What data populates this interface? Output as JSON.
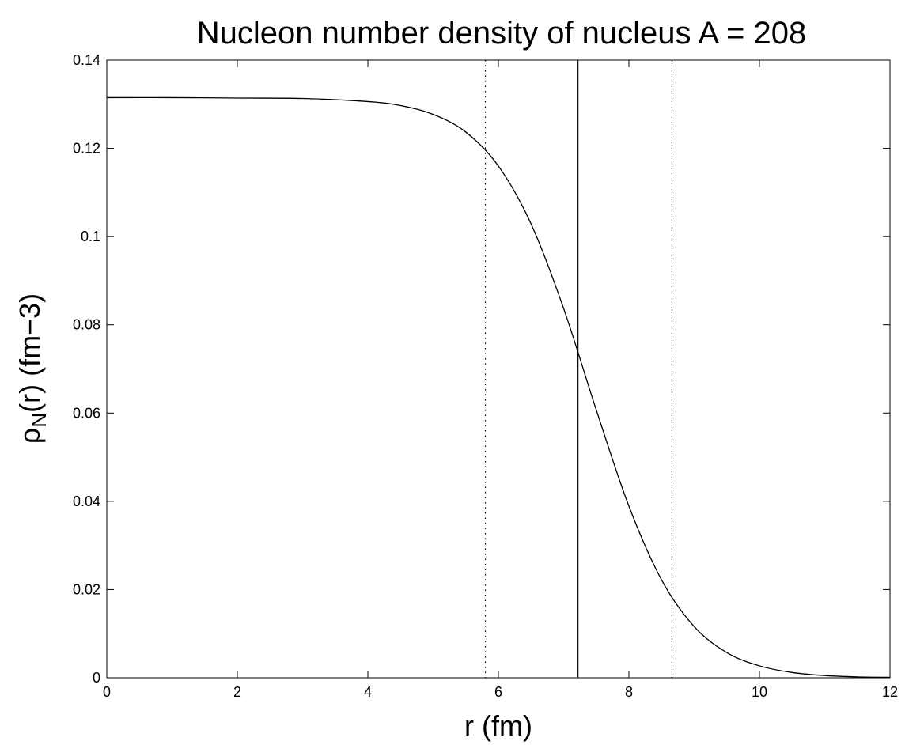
{
  "chart_data": {
    "type": "line",
    "title": "Nucleon number density of nucleus A = 208",
    "xlabel": "r (fm)",
    "ylabel": {
      "symbol": "ρ",
      "subscript": "N",
      "rest": "(r)  (fm",
      "exponent": "−3",
      "close": ")"
    },
    "xlim": [
      0,
      12
    ],
    "ylim": [
      0,
      0.14
    ],
    "x_ticks": [
      "0",
      "2",
      "4",
      "6",
      "8",
      "10",
      "12"
    ],
    "y_ticks": [
      "0",
      "0.02",
      "0.04",
      "0.06",
      "0.08",
      "0.1",
      "0.12",
      "0.14"
    ],
    "grid": false,
    "legend": "none",
    "series": [
      {
        "style": "solid",
        "color": "#000000",
        "x": [
          0,
          1,
          2,
          3,
          4,
          4.5,
          5,
          5.5,
          6,
          6.5,
          7,
          7.5,
          8,
          8.5,
          9,
          9.5,
          10,
          10.5,
          11,
          11.5,
          12
        ],
        "y": [
          0.1315,
          0.1315,
          0.1314,
          0.1313,
          0.1306,
          0.1297,
          0.1277,
          0.1237,
          0.116,
          0.1029,
          0.0837,
          0.0607,
          0.0389,
          0.0222,
          0.0116,
          0.0057,
          0.0027,
          0.0012,
          0.0005,
          0.0002,
          0.0001
        ]
      }
    ],
    "vertical_lines": [
      {
        "x": 5.8,
        "style": "dotted",
        "color": "#000000"
      },
      {
        "x": 7.22,
        "style": "solid",
        "color": "#000000"
      },
      {
        "x": 8.66,
        "style": "dotted",
        "color": "#000000"
      }
    ]
  }
}
